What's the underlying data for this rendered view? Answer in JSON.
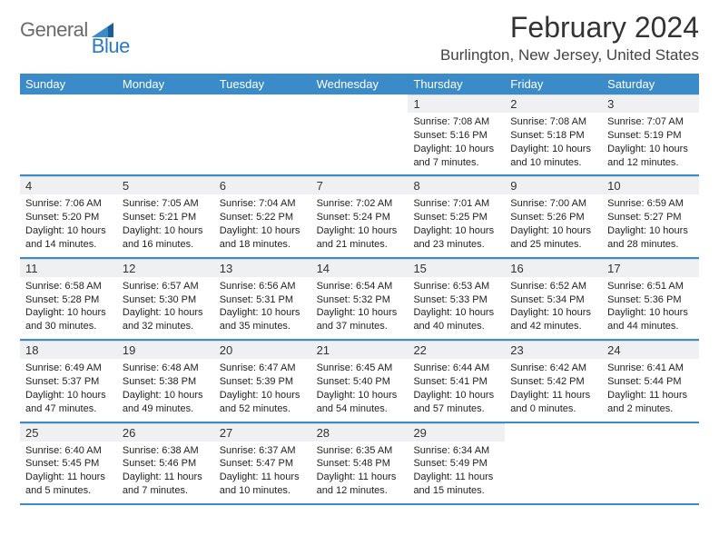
{
  "logo": {
    "text1": "General",
    "text2": "Blue"
  },
  "title": "February 2024",
  "location": "Burlington, New Jersey, United States",
  "colors": {
    "header_bg": "#3b8bc9",
    "header_text": "#ffffff",
    "daynum_bg": "#eef0f2",
    "row_border": "#3b8bc9",
    "logo_gray": "#6b6b6b",
    "logo_blue": "#2a7abf"
  },
  "weekdays": [
    "Sunday",
    "Monday",
    "Tuesday",
    "Wednesday",
    "Thursday",
    "Friday",
    "Saturday"
  ],
  "weeks": [
    [
      null,
      null,
      null,
      null,
      {
        "n": "1",
        "sr": "7:08 AM",
        "ss": "5:16 PM",
        "dl": "10 hours and 7 minutes."
      },
      {
        "n": "2",
        "sr": "7:08 AM",
        "ss": "5:18 PM",
        "dl": "10 hours and 10 minutes."
      },
      {
        "n": "3",
        "sr": "7:07 AM",
        "ss": "5:19 PM",
        "dl": "10 hours and 12 minutes."
      }
    ],
    [
      {
        "n": "4",
        "sr": "7:06 AM",
        "ss": "5:20 PM",
        "dl": "10 hours and 14 minutes."
      },
      {
        "n": "5",
        "sr": "7:05 AM",
        "ss": "5:21 PM",
        "dl": "10 hours and 16 minutes."
      },
      {
        "n": "6",
        "sr": "7:04 AM",
        "ss": "5:22 PM",
        "dl": "10 hours and 18 minutes."
      },
      {
        "n": "7",
        "sr": "7:02 AM",
        "ss": "5:24 PM",
        "dl": "10 hours and 21 minutes."
      },
      {
        "n": "8",
        "sr": "7:01 AM",
        "ss": "5:25 PM",
        "dl": "10 hours and 23 minutes."
      },
      {
        "n": "9",
        "sr": "7:00 AM",
        "ss": "5:26 PM",
        "dl": "10 hours and 25 minutes."
      },
      {
        "n": "10",
        "sr": "6:59 AM",
        "ss": "5:27 PM",
        "dl": "10 hours and 28 minutes."
      }
    ],
    [
      {
        "n": "11",
        "sr": "6:58 AM",
        "ss": "5:28 PM",
        "dl": "10 hours and 30 minutes."
      },
      {
        "n": "12",
        "sr": "6:57 AM",
        "ss": "5:30 PM",
        "dl": "10 hours and 32 minutes."
      },
      {
        "n": "13",
        "sr": "6:56 AM",
        "ss": "5:31 PM",
        "dl": "10 hours and 35 minutes."
      },
      {
        "n": "14",
        "sr": "6:54 AM",
        "ss": "5:32 PM",
        "dl": "10 hours and 37 minutes."
      },
      {
        "n": "15",
        "sr": "6:53 AM",
        "ss": "5:33 PM",
        "dl": "10 hours and 40 minutes."
      },
      {
        "n": "16",
        "sr": "6:52 AM",
        "ss": "5:34 PM",
        "dl": "10 hours and 42 minutes."
      },
      {
        "n": "17",
        "sr": "6:51 AM",
        "ss": "5:36 PM",
        "dl": "10 hours and 44 minutes."
      }
    ],
    [
      {
        "n": "18",
        "sr": "6:49 AM",
        "ss": "5:37 PM",
        "dl": "10 hours and 47 minutes."
      },
      {
        "n": "19",
        "sr": "6:48 AM",
        "ss": "5:38 PM",
        "dl": "10 hours and 49 minutes."
      },
      {
        "n": "20",
        "sr": "6:47 AM",
        "ss": "5:39 PM",
        "dl": "10 hours and 52 minutes."
      },
      {
        "n": "21",
        "sr": "6:45 AM",
        "ss": "5:40 PM",
        "dl": "10 hours and 54 minutes."
      },
      {
        "n": "22",
        "sr": "6:44 AM",
        "ss": "5:41 PM",
        "dl": "10 hours and 57 minutes."
      },
      {
        "n": "23",
        "sr": "6:42 AM",
        "ss": "5:42 PM",
        "dl": "11 hours and 0 minutes."
      },
      {
        "n": "24",
        "sr": "6:41 AM",
        "ss": "5:44 PM",
        "dl": "11 hours and 2 minutes."
      }
    ],
    [
      {
        "n": "25",
        "sr": "6:40 AM",
        "ss": "5:45 PM",
        "dl": "11 hours and 5 minutes."
      },
      {
        "n": "26",
        "sr": "6:38 AM",
        "ss": "5:46 PM",
        "dl": "11 hours and 7 minutes."
      },
      {
        "n": "27",
        "sr": "6:37 AM",
        "ss": "5:47 PM",
        "dl": "11 hours and 10 minutes."
      },
      {
        "n": "28",
        "sr": "6:35 AM",
        "ss": "5:48 PM",
        "dl": "11 hours and 12 minutes."
      },
      {
        "n": "29",
        "sr": "6:34 AM",
        "ss": "5:49 PM",
        "dl": "11 hours and 15 minutes."
      },
      null,
      null
    ]
  ],
  "labels": {
    "sunrise": "Sunrise:",
    "sunset": "Sunset:",
    "daylight": "Daylight:"
  }
}
